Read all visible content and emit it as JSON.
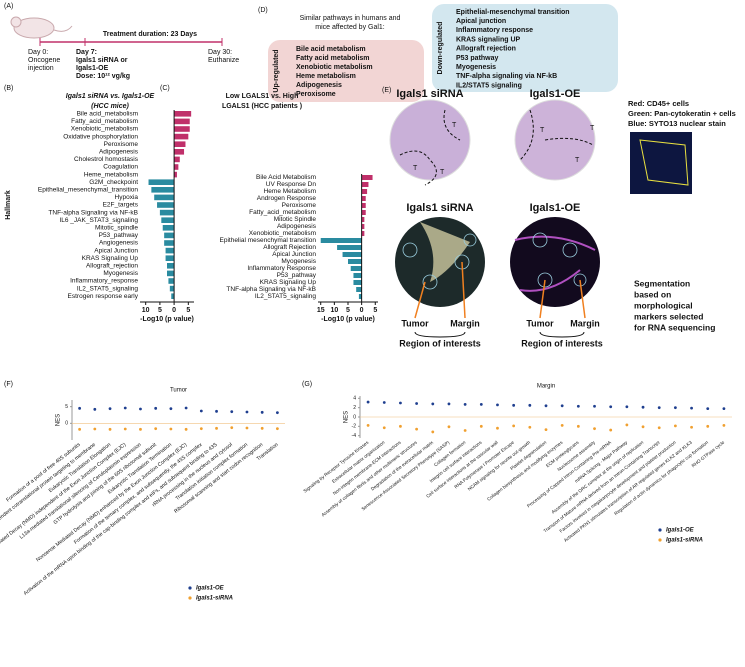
{
  "panel_a": {
    "label": "(A)",
    "duration": "Treatment duration: 23 Days",
    "day0": [
      "Day 0:",
      "Oncogene",
      "injection"
    ],
    "day7": [
      "Day 7:",
      "Igals1 siRNA or",
      "Igals1-OE",
      "Dose: 10¹² vg/kg"
    ],
    "day30": [
      "Day 30:",
      "Euthanize"
    ]
  },
  "panel_d": {
    "label": "(D)",
    "header": [
      "Similar pathways in humans and",
      "mice affected by Gal1:"
    ],
    "up_title": "Up-regulated",
    "up": [
      "Bile acid metabolism",
      "Fatty acid metabolism",
      "Xenobiotic metabolism",
      "Heme metabolism",
      "Adipogenesis",
      "Peroxisome"
    ],
    "down_title": "Down-regulated",
    "down": [
      "Epithelial-mesenchymal transition",
      "Apical junction",
      "Inflammatory response",
      "KRAS signaling UP",
      "Allograft rejection",
      "P53 pathway",
      "Myogenesis",
      "TNF-alpha signaling via NF-kB",
      "IL2/STAT5 signaling"
    ]
  },
  "panel_b": {
    "label": "(B)",
    "title": [
      "Igals1 siRNA vs. Igals1-OE",
      "(HCC mice)"
    ],
    "ylabel": "Hallmark",
    "xlabel": "-Log10 (p value)",
    "up_color": "#c0306a",
    "down_color": "#2a8ba0",
    "categories": [
      "Bile acid_metabolism",
      "Fatty_acid_metabolism",
      "Xenobiotic_metabolism",
      "Oxidative phosphorylation",
      "Peroxisome",
      "Adipogenesis",
      "Cholestrol homostasis",
      "Coagulation",
      "Heme_metabolism",
      "G2M_checkpoint",
      "Epithelial_mesenchymal_transition",
      "Hypoxia",
      "E2F_targets",
      "TNF-alpha Signaling via NF-kB",
      "IL6 _JAK_STAT3_signaling",
      "Mitotic_spindle",
      "P53_pathway",
      "Angiogenesis",
      "Apical Junction",
      "KRAS Signaling Up",
      "Allograft_rejection",
      "Myogenesis",
      "Inflammatory_response",
      "IL2_STAT5_signaling",
      "Estrogen response early"
    ],
    "values": [
      6,
      5.5,
      5.5,
      5,
      4,
      3.5,
      2,
      1.5,
      1,
      -9,
      -8,
      -7,
      -6,
      -5,
      -4.5,
      -4,
      -3.5,
      -3.5,
      -3,
      -3,
      -2.5,
      -2.5,
      -2,
      -1.5,
      -1
    ],
    "xlim": [
      -12,
      7
    ],
    "xticks": [
      {
        "value": -10,
        "label": "10"
      },
      {
        "value": -5,
        "label": "5"
      },
      0,
      5
    ]
  },
  "panel_c": {
    "label": "(C)",
    "title": [
      "Low LGALS1 vs. High",
      "LGALS1 (HCC patients )"
    ],
    "xlabel": "-Log10 (p value)",
    "up_color": "#c0306a",
    "down_color": "#2a8ba0",
    "categories": [
      "Bile Acid Metabolism",
      "UV Response Dn",
      "Heme Metabolism",
      "Androgen Response",
      "Peroxisome",
      "Fatty_acid_metabolism",
      "Mitotic Spindle",
      "Adipogenesis",
      "Xenobiotic_metabolism",
      "Epithelial mesenchymal transition",
      "Allograft Rejection",
      "Apical Junction",
      "Myogenesis",
      "Inflammatory Response",
      "P53_pathway",
      "KRAS Signaling Up",
      "TNF-alpha Signaling via NF-kB",
      "IL2_STAT5_signaling"
    ],
    "values": [
      4,
      2.5,
      2,
      1.5,
      1.5,
      1.5,
      1,
      1,
      1,
      -15,
      -9,
      -7,
      -5,
      -4,
      -3,
      -3,
      -2,
      -1
    ],
    "xlim": [
      -16,
      6
    ],
    "xticks": [
      {
        "value": -15,
        "label": "15"
      },
      {
        "value": -10,
        "label": "10"
      },
      {
        "value": -5,
        "label": "5"
      },
      0,
      5
    ]
  },
  "panel_e": {
    "label": "(E)",
    "top_titles": [
      "Igals1 siRNA",
      "Igals1-OE"
    ],
    "bottom_titles": [
      "Igals1 siRNA",
      "Igals1-OE"
    ],
    "tumor_marks": [
      "T",
      "T",
      "T",
      "T",
      "T",
      "T"
    ],
    "stain_legend": [
      {
        "text": "Red: CD45+ cells",
        "color": "#e01010"
      },
      {
        "text": "Green: Pan-cytokeratin + cells",
        "color": "#10a010"
      },
      {
        "text": "Blue: SYTO13 nuclear stain",
        "color": "#1a2a60"
      }
    ],
    "roi_labels": [
      "Tumor",
      "Margin",
      "Tumor",
      "Margin"
    ],
    "roi_titles": [
      "Region of interests",
      "Region of interests"
    ],
    "note": [
      "Segmentation",
      "based on",
      "morphological",
      "markers selected",
      "for RNA sequencing"
    ]
  },
  "panel_f": {
    "type": "scatter",
    "label": "(F)",
    "title": "Tumor",
    "ylabel": "NES",
    "ylim": [
      -5,
      7
    ],
    "yticks": [
      0,
      5
    ],
    "categories": [
      "Formation of a pool of free 40S subunits",
      "SRP-dependent cotranslational protein targeting to membrane",
      "Eukaryotic Translation Elongation",
      "Nonsense Mediated Decay (NMD) independent of the Exon Junction Complex (EJC)",
      "L13a-mediated translational silencing of Ceruloplasmin expression",
      "GTP hydrolysis and joining of the 60S ribosomal subunit",
      "Eukaryotic Translation Termination",
      "Nonsense Mediated Decay (NMD) enhanced by the Exon Junction Complex (EJC)",
      "Formation of the ternary complex, and subsequently, the 43S complex",
      "Activation of the mRNA upon binding of the cap-binding complex and eIFs, and subsequent binding to 43S",
      "rRNA processing in the nucleus and cytosol",
      "Translation initiation complex formation",
      "Ribosomal scanning and start codon recognition",
      "Translation"
    ],
    "series": [
      {
        "name": "Igals1-OE",
        "color": "#1f3f8f",
        "values": [
          4.5,
          4.2,
          4.4,
          4.6,
          4.3,
          4.5,
          4.4,
          4.6,
          3.7,
          3.6,
          3.5,
          3.4,
          3.3,
          3.2
        ]
      },
      {
        "name": "Igals1-siRNA",
        "color": "#f0a030",
        "values": [
          -1.8,
          -1.7,
          -1.8,
          -1.7,
          -1.8,
          -1.6,
          -1.7,
          -1.8,
          -1.6,
          -1.5,
          -1.3,
          -1.4,
          -1.5,
          -1.6
        ]
      }
    ]
  },
  "panel_g": {
    "type": "scatter",
    "label": "(G)",
    "title": "Margin",
    "ylabel": "NES",
    "ylim": [
      -4.5,
      4.5
    ],
    "yticks": [
      -4,
      -2,
      0,
      2,
      4
    ],
    "categories": [
      "Signaling by Receptor Tyrosine Kinases",
      "Extracellular matrix organization",
      "Non-integrin membrane-ECM interactions",
      "Assembly of collagen fibrils and other multimeric structures",
      "Degradation of the extracellular matrix",
      "Senescence-Associated Secretory Phenotype (SASP)",
      "Collagen formation",
      "Integrin cell surface interactions",
      "Cell surface interactions at the vascular wall",
      "RNA Polymerase I Promoter Escape",
      "NCAM signaling for neurite out-growth",
      "Platelet degranulation",
      "Collagen biosynthesis and modifying enzymes",
      "ECM proteoglycans",
      "Nucleosome assembly",
      "Processing of Capped Intron-Containing Pre-mRNA",
      "mRNA Splicing - Major Pathway",
      "Assembly of the ORC complex at the origin of replication",
      "Transport of Mature mRNA derived from an Intron-Containing Transcript",
      "Factors involved in megakaryocyte development and platelet production",
      "Activated PKN1 stimulates transcription of AR regulated genes KLK2 and KLK3",
      "Regulation of actin dynamics for phagocytic cup formation",
      "RHO GTPase cycle"
    ],
    "series": [
      {
        "name": "Igals1-OE",
        "color": "#1f3f8f",
        "values": [
          3.2,
          3.1,
          3.0,
          2.9,
          2.8,
          2.8,
          2.7,
          2.7,
          2.6,
          2.5,
          2.5,
          2.4,
          2.4,
          2.3,
          2.3,
          2.2,
          2.2,
          2.1,
          2.0,
          2.0,
          1.9,
          1.8,
          1.8
        ]
      },
      {
        "name": "Igals1-siRNA",
        "color": "#f0a030",
        "values": [
          -1.8,
          -2.3,
          -2.0,
          -2.6,
          -3.2,
          -2.1,
          -2.9,
          -2.0,
          -2.4,
          -1.9,
          -2.2,
          -2.7,
          -1.8,
          -2.0,
          -2.5,
          -2.8,
          -1.7,
          -2.1,
          -2.3,
          -1.9,
          -2.2,
          -2.0,
          -1.8
        ]
      }
    ]
  }
}
